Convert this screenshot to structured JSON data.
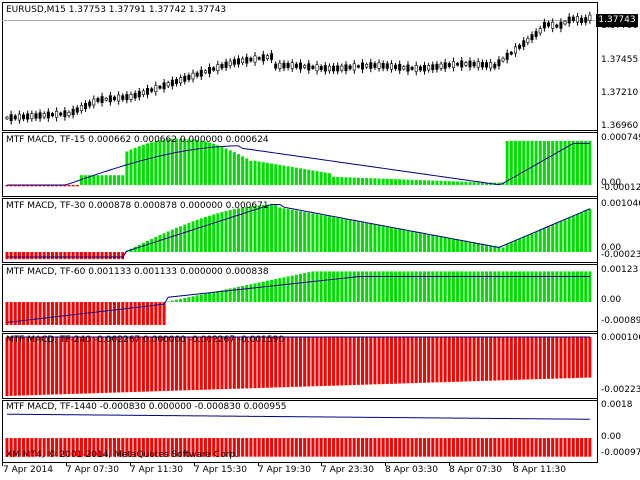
{
  "main": {
    "symbol_header": "EURUSD,M15  1.37753 1.37791 1.37742 1.37743",
    "current_price": "1.37743",
    "price_ticks": [
      "1.37700",
      "1.37455",
      "1.37210",
      "1.36960"
    ],
    "copyright": "XM MT4, © 2001-2014, MetaQuotes Software Corp."
  },
  "time_axis": [
    "7 Apr 2014",
    "7 Apr 07:30",
    "7 Apr 11:30",
    "7 Apr 15:30",
    "7 Apr 19:30",
    "7 Apr 23:30",
    "8 Apr 03:30",
    "8 Apr 07:30",
    "8 Apr 11:30"
  ],
  "indicators": [
    {
      "title": "MTF MACD, TF-15 0.000662 0.000662 0.000000 0.000624",
      "ticks": [
        "0.000749",
        "0.00",
        "-0.000128"
      ]
    },
    {
      "title": "MTF MACD, TF-30 0.000878 0.000878 0.000000 0.000671",
      "ticks": [
        "0.001046",
        "0.00",
        "-0.000231"
      ]
    },
    {
      "title": "MTF MACD, TF-60 0.001133 0.001133 0.000000 0.000838",
      "ticks": [
        "0.00123",
        "0.00",
        "-0.000896"
      ]
    },
    {
      "title": "MTF MACD, TF-240 -0.002267 0.000000 -0.002267 -0.001590",
      "ticks": [
        "0.000106",
        "-0.002232"
      ]
    },
    {
      "title": "MTF MACD, TF-1440 -0.000830 0.000000 -0.000830 0.000955",
      "ticks": [
        "0.0018",
        "0.00",
        "-0.000971"
      ]
    }
  ],
  "colors": {
    "positive": "#00e000",
    "negative": "#ff0000",
    "signal": "#00008b",
    "price": "#000000"
  }
}
